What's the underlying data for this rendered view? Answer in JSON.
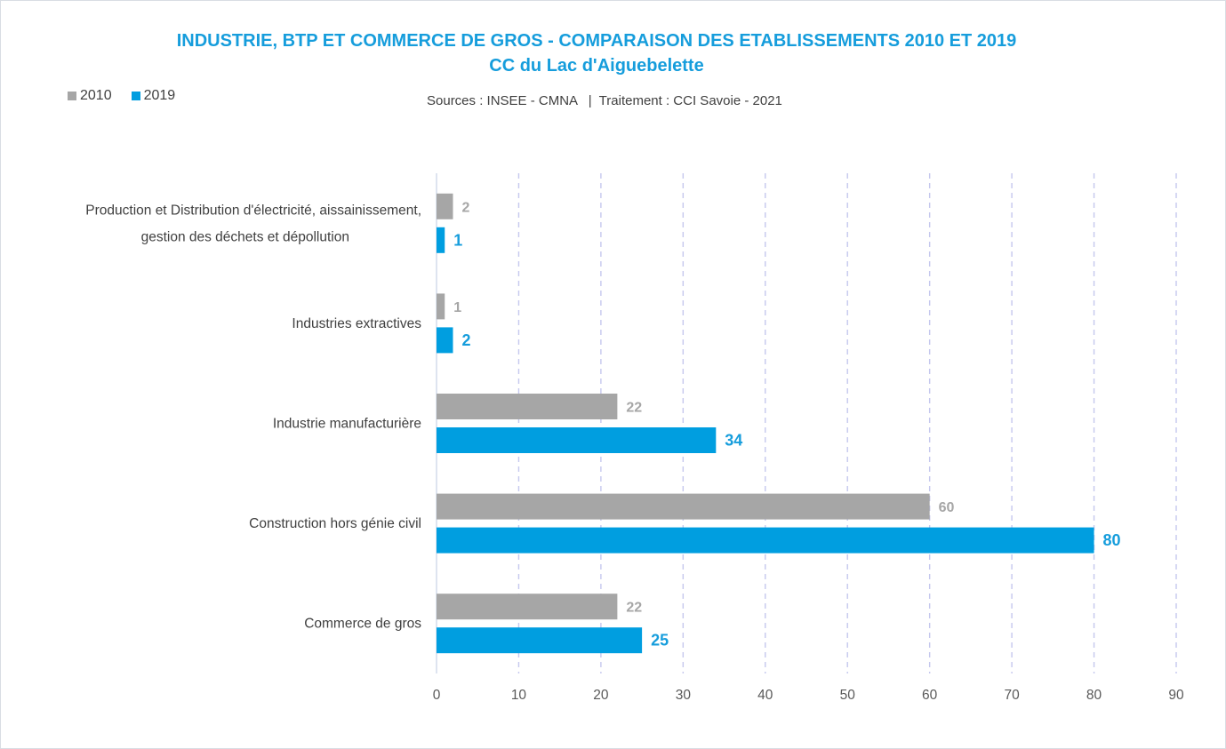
{
  "chart_data": {
    "type": "bar",
    "orientation": "horizontal",
    "title": "INDUSTRIE, BTP ET COMMERCE DE GROS - COMPARAISON DES ETABLISSEMENTS 2010 ET 2019",
    "subtitle": "CC du Lac d'Aiguebelette",
    "source": "Sources : INSEE - CMNA   |  Traitement : CCI Savoie - 2021",
    "categories": [
      [
        "Production et Distribution d'électricité, aissainissement,",
        "gestion des déchets et dépollution"
      ],
      [
        "Industries extractives"
      ],
      [
        "Industrie manufacturière"
      ],
      [
        "Construction hors génie civil"
      ],
      [
        "Commerce de gros"
      ]
    ],
    "series": [
      {
        "name": "2010",
        "color": "#a6a6a6",
        "values": [
          2,
          1,
          22,
          60,
          22
        ]
      },
      {
        "name": "2019",
        "color": "#009ee0",
        "values": [
          1,
          2,
          34,
          80,
          25
        ]
      }
    ],
    "xlim": [
      0,
      90
    ],
    "xticks": [
      0,
      10,
      20,
      30,
      40,
      50,
      60,
      70,
      80,
      90
    ],
    "grid": "vertical-dashed",
    "legend": "top-left",
    "xlabel": "",
    "ylabel": ""
  }
}
